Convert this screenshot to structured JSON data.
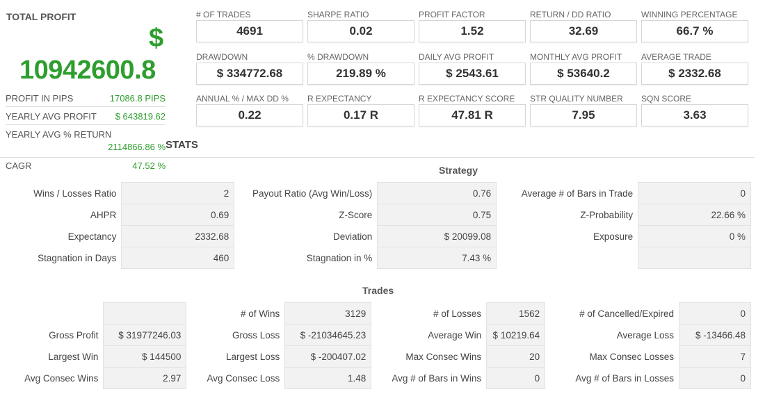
{
  "summary": {
    "title": "TOTAL PROFIT",
    "currency": "$",
    "value": "10942600.8",
    "rows": [
      {
        "label": "PROFIT IN PIPS",
        "value": "17086.8 PIPS"
      },
      {
        "label": "YEARLY AVG PROFIT",
        "value": "$ 643819.62"
      },
      {
        "label": "YEARLY AVG % RETURN",
        "value": "2114866.86 %"
      },
      {
        "label": "CAGR",
        "value": "47.52 %"
      }
    ]
  },
  "metrics": [
    {
      "label": "# OF TRADES",
      "value": "4691"
    },
    {
      "label": "SHARPE RATIO",
      "value": "0.02"
    },
    {
      "label": "PROFIT FACTOR",
      "value": "1.52"
    },
    {
      "label": "RETURN / DD RATIO",
      "value": "32.69"
    },
    {
      "label": "WINNING PERCENTAGE",
      "value": "66.7 %"
    },
    {
      "label": "DRAWDOWN",
      "value": "$ 334772.68"
    },
    {
      "label": "% DRAWDOWN",
      "value": "219.89 %"
    },
    {
      "label": "DAILY AVG PROFIT",
      "value": "$ 2543.61"
    },
    {
      "label": "MONTHLY AVG PROFIT",
      "value": "$ 53640.2"
    },
    {
      "label": "AVERAGE TRADE",
      "value": "$ 2332.68"
    },
    {
      "label": "ANNUAL % / MAX DD %",
      "value": "0.22"
    },
    {
      "label": "R EXPECTANCY",
      "value": "0.17 R"
    },
    {
      "label": "R EXPECTANCY SCORE",
      "value": "47.81 R"
    },
    {
      "label": "STR QUALITY NUMBER",
      "value": "7.95"
    },
    {
      "label": "SQN SCORE",
      "value": "3.63"
    }
  ],
  "stats_title": "STATS",
  "strategy": {
    "title": "Strategy",
    "rows": [
      [
        {
          "k": "Wins / Losses Ratio",
          "v": "2"
        },
        {
          "k": "Payout Ratio (Avg Win/Loss)",
          "v": "0.76"
        },
        {
          "k": "Average # of Bars in Trade",
          "v": "0"
        }
      ],
      [
        {
          "k": "AHPR",
          "v": "0.69"
        },
        {
          "k": "Z-Score",
          "v": "0.75"
        },
        {
          "k": "Z-Probability",
          "v": "22.66 %"
        }
      ],
      [
        {
          "k": "Expectancy",
          "v": "2332.68"
        },
        {
          "k": "Deviation",
          "v": "$ 20099.08"
        },
        {
          "k": "Exposure",
          "v": "0 %"
        }
      ],
      [
        {
          "k": "Stagnation in Days",
          "v": "460"
        },
        {
          "k": "Stagnation in %",
          "v": "7.43 %"
        },
        {
          "k": "",
          "v": ""
        }
      ]
    ]
  },
  "trades": {
    "title": "Trades",
    "rows": [
      [
        {
          "k": "",
          "v": ""
        },
        {
          "k": "# of Wins",
          "v": "3129"
        },
        {
          "k": "# of Losses",
          "v": "1562"
        },
        {
          "k": "# of Cancelled/Expired",
          "v": "0"
        }
      ],
      [
        {
          "k": "Gross Profit",
          "v": "$ 31977246.03"
        },
        {
          "k": "Gross Loss",
          "v": "$ -21034645.23"
        },
        {
          "k": "Average Win",
          "v": "$ 10219.64"
        },
        {
          "k": "Average Loss",
          "v": "$ -13466.48"
        }
      ],
      [
        {
          "k": "Largest Win",
          "v": "$ 144500"
        },
        {
          "k": "Largest Loss",
          "v": "$ -200407.02"
        },
        {
          "k": "Max Consec Wins",
          "v": "20"
        },
        {
          "k": "Max Consec Losses",
          "v": "7"
        }
      ],
      [
        {
          "k": "Avg Consec Wins",
          "v": "2.97"
        },
        {
          "k": "Avg Consec Loss",
          "v": "1.48"
        },
        {
          "k": "Avg # of Bars in Wins",
          "v": "0"
        },
        {
          "k": "Avg # of Bars in Losses",
          "v": "0"
        }
      ]
    ]
  }
}
